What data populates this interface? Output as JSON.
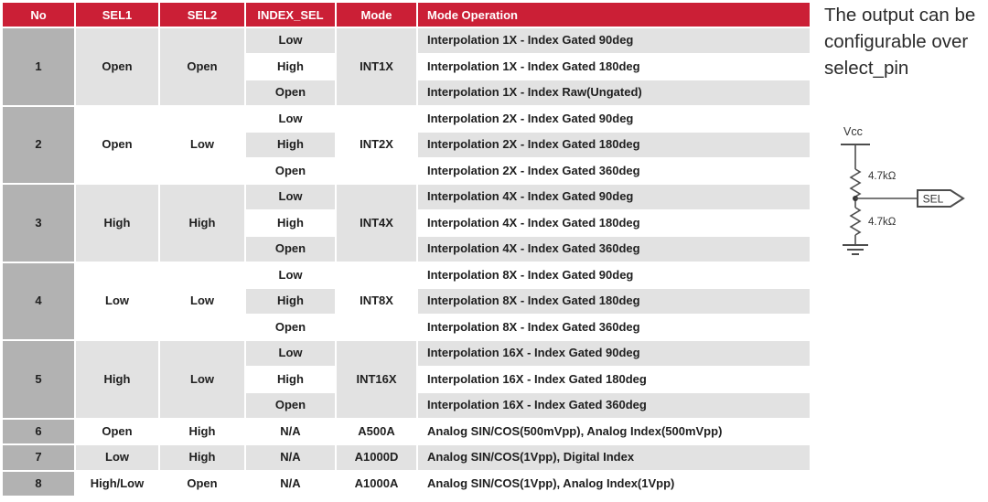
{
  "note": {
    "text": "The output can be configurable over select_pin"
  },
  "table": {
    "headers": [
      "No",
      "SEL1",
      "SEL2",
      "INDEX_SEL",
      "Mode",
      "Mode Operation"
    ],
    "groups": [
      {
        "no": "1",
        "sel1": "Open",
        "sel2": "Open",
        "mode": "INT1X",
        "rows": [
          {
            "index_sel": "Low",
            "operation": "Interpolation 1X - Index Gated 90deg"
          },
          {
            "index_sel": "High",
            "operation": "Interpolation 1X - Index Gated 180deg"
          },
          {
            "index_sel": "Open",
            "operation": "Interpolation 1X - Index Raw(Ungated)"
          }
        ]
      },
      {
        "no": "2",
        "sel1": "Open",
        "sel2": "Low",
        "mode": "INT2X",
        "rows": [
          {
            "index_sel": "Low",
            "operation": "Interpolation 2X - Index Gated 90deg"
          },
          {
            "index_sel": "High",
            "operation": "Interpolation 2X - Index Gated 180deg"
          },
          {
            "index_sel": "Open",
            "operation": "Interpolation 2X - Index Gated 360deg"
          }
        ]
      },
      {
        "no": "3",
        "sel1": "High",
        "sel2": "High",
        "mode": "INT4X",
        "rows": [
          {
            "index_sel": "Low",
            "operation": "Interpolation 4X - Index Gated 90deg"
          },
          {
            "index_sel": "High",
            "operation": "Interpolation 4X - Index Gated 180deg"
          },
          {
            "index_sel": "Open",
            "operation": "Interpolation 4X - Index Gated 360deg"
          }
        ]
      },
      {
        "no": "4",
        "sel1": "Low",
        "sel2": "Low",
        "mode": "INT8X",
        "rows": [
          {
            "index_sel": "Low",
            "operation": "Interpolation 8X - Index Gated 90deg"
          },
          {
            "index_sel": "High",
            "operation": "Interpolation 8X - Index Gated 180deg"
          },
          {
            "index_sel": "Open",
            "operation": "Interpolation 8X - Index Gated 360deg"
          }
        ]
      },
      {
        "no": "5",
        "sel1": "High",
        "sel2": "Low",
        "mode": "INT16X",
        "rows": [
          {
            "index_sel": "Low",
            "operation": "Interpolation 16X - Index Gated 90deg"
          },
          {
            "index_sel": "High",
            "operation": "Interpolation 16X - Index Gated 180deg"
          },
          {
            "index_sel": "Open",
            "operation": "Interpolation 16X - Index Gated 360deg"
          }
        ]
      },
      {
        "no": "6",
        "sel1": "Open",
        "sel2": "High",
        "mode": "A500A",
        "rows": [
          {
            "index_sel": "N/A",
            "operation": "Analog SIN/COS(500mVpp), Analog Index(500mVpp)"
          }
        ]
      },
      {
        "no": "7",
        "sel1": "Low",
        "sel2": "High",
        "mode": "A1000D",
        "rows": [
          {
            "index_sel": "N/A",
            "operation": "Analog SIN/COS(1Vpp), Digital Index"
          }
        ]
      },
      {
        "no": "8",
        "sel1": "High/Low",
        "sel2": "Open",
        "mode": "A1000A",
        "rows": [
          {
            "index_sel": "N/A",
            "operation": "Analog SIN/COS(1Vpp), Analog Index(1Vpp)"
          }
        ]
      }
    ]
  },
  "circuit": {
    "vcc_label": "Vcc",
    "r1_label": "4.7kΩ",
    "r2_label": "4.7kΩ",
    "sel_label": "SEL"
  },
  "colors": {
    "header_red": "#cb1f36",
    "no_column_gray": "#b2b2b2",
    "stripe_gray": "#e2e2e2",
    "stripe_white": "#ffffff",
    "text_dark": "#202020"
  }
}
